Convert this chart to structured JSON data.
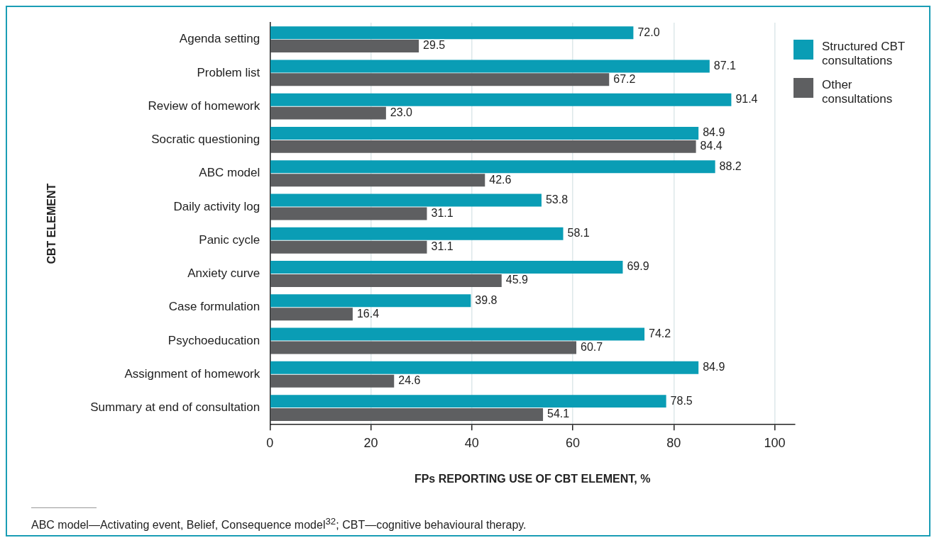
{
  "chart_data": {
    "type": "bar",
    "orientation": "horizontal",
    "xlabel": "FPs REPORTING USE OF CBT ELEMENT, %",
    "ylabel": "CBT ELEMENT",
    "categories": [
      "Agenda setting",
      "Problem list",
      "Review of homework",
      "Socratic questioning",
      "ABC model",
      "Daily activity log",
      "Panic cycle",
      "Anxiety curve",
      "Case formulation",
      "Psychoeducation",
      "Assignment of homework",
      "Summary at end of consultation"
    ],
    "series": [
      {
        "name": "Structured CBT consultations",
        "color": "#0a9db5",
        "values": [
          72.0,
          87.1,
          91.4,
          84.9,
          88.2,
          53.8,
          58.1,
          69.9,
          39.8,
          74.2,
          84.9,
          78.5
        ],
        "value_labels": [
          "72.0",
          "87.1",
          "91.4",
          "84.9",
          "88.2",
          "53.8",
          "58.1",
          "69.9",
          "39.8",
          "74.2",
          "84.9",
          "78.5"
        ]
      },
      {
        "name": "Other consultations",
        "color": "#5e5f61",
        "values": [
          29.5,
          67.2,
          23.0,
          84.4,
          42.6,
          31.1,
          31.1,
          45.9,
          16.4,
          60.7,
          24.6,
          54.1
        ],
        "value_labels": [
          "29.5",
          "67.2",
          "23.0",
          "84.4",
          "42.6",
          "31.1",
          "31.1",
          "45.9",
          "16.4",
          "60.7",
          "24.6",
          "54.1"
        ]
      }
    ],
    "xlim": [
      0,
      104
    ],
    "xticks": [
      0,
      20,
      40,
      60,
      80,
      100
    ],
    "grid": "x",
    "legend": "top right",
    "annotations": [
      "ABC model—Activating event, Belief, Consequence model$^{32}$; CBT—cognitive behavioural therapy."
    ]
  }
}
